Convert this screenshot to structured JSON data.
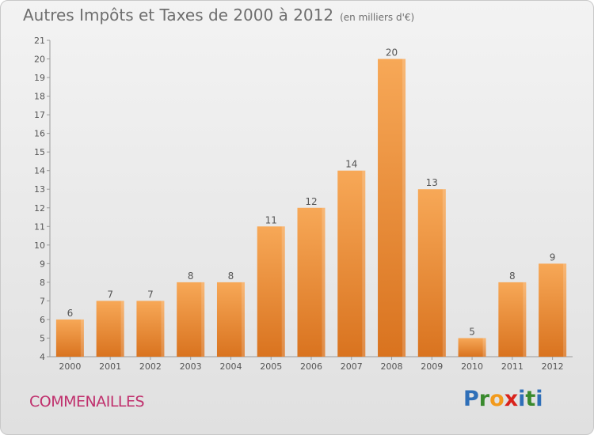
{
  "header": {
    "title": "Autres Impôts et Taxes de 2000 à 2012",
    "unit": "(en milliers d'€)"
  },
  "footer": {
    "commune": "COMMENAILLES",
    "logo_letters": [
      "P",
      "r",
      "o",
      "x",
      "i",
      "t",
      "i"
    ]
  },
  "colors": {
    "bar_top": "#f7a857",
    "bar_bottom": "#d9731f",
    "commune": "#c0306d",
    "logo": [
      "#2f6fb8",
      "#3a8a2e",
      "#f29a1c",
      "#d9231c",
      "#2f6fb8",
      "#3a8a2e",
      "#2f6fb8"
    ]
  },
  "chart_data": {
    "type": "bar",
    "categories": [
      "2000",
      "2001",
      "2002",
      "2003",
      "2004",
      "2005",
      "2006",
      "2007",
      "2008",
      "2009",
      "2010",
      "2011",
      "2012"
    ],
    "values": [
      6,
      7,
      7,
      8,
      8,
      11,
      12,
      14,
      20,
      13,
      5,
      8,
      9
    ],
    "ylim": [
      4,
      21
    ],
    "yticks": [
      "4",
      "5",
      "6",
      "7",
      "8",
      "9",
      "10",
      "11",
      "12",
      "13",
      "14",
      "15",
      "16",
      "17",
      "18",
      "19",
      "20",
      "21"
    ],
    "grid": false,
    "value_labels": true
  }
}
